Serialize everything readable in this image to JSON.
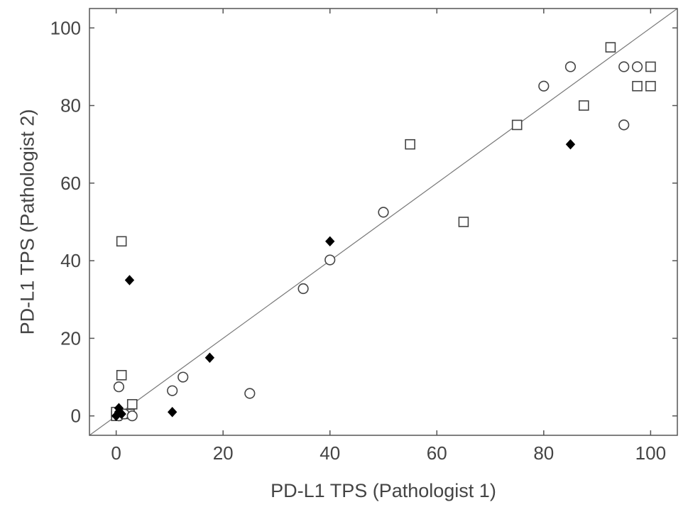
{
  "chart_data": {
    "type": "scatter",
    "title": "",
    "xlabel": "PD-L1 TPS (Pathologist 1)",
    "ylabel": "PD-L1 TPS (Pathologist 2)",
    "xlim": [
      -5,
      105
    ],
    "ylim": [
      -5,
      105
    ],
    "xticks": [
      0,
      20,
      40,
      60,
      80,
      100
    ],
    "yticks": [
      0,
      20,
      40,
      60,
      80,
      100
    ],
    "grid": false,
    "legend": "none",
    "reference_line": {
      "type": "identity",
      "x": [
        -5,
        105
      ],
      "y": [
        -5,
        105
      ],
      "color": "#777777"
    },
    "series": [
      {
        "marker": "square",
        "filled": false,
        "color": "#444444",
        "points": [
          {
            "x": 0,
            "y": 0
          },
          {
            "x": 0,
            "y": 1
          },
          {
            "x": 1,
            "y": 45
          },
          {
            "x": 1,
            "y": 10.5
          },
          {
            "x": 3,
            "y": 3
          },
          {
            "x": 2.5,
            "y": 0.5
          },
          {
            "x": 55,
            "y": 70
          },
          {
            "x": 65,
            "y": 50
          },
          {
            "x": 75,
            "y": 75
          },
          {
            "x": 87.5,
            "y": 80
          },
          {
            "x": 92.5,
            "y": 95
          },
          {
            "x": 97.5,
            "y": 85
          },
          {
            "x": 100,
            "y": 90
          },
          {
            "x": 100,
            "y": 85
          }
        ]
      },
      {
        "marker": "circle",
        "filled": false,
        "color": "#444444",
        "points": [
          {
            "x": 0.5,
            "y": 7.5
          },
          {
            "x": 0.5,
            "y": 0
          },
          {
            "x": 1.5,
            "y": 0.5
          },
          {
            "x": 3,
            "y": 0
          },
          {
            "x": 10.5,
            "y": 6.5
          },
          {
            "x": 12.5,
            "y": 10
          },
          {
            "x": 25,
            "y": 5.8
          },
          {
            "x": 35,
            "y": 32.8
          },
          {
            "x": 40,
            "y": 40.2
          },
          {
            "x": 50,
            "y": 52.5
          },
          {
            "x": 80,
            "y": 85
          },
          {
            "x": 85,
            "y": 90
          },
          {
            "x": 95,
            "y": 90
          },
          {
            "x": 97.5,
            "y": 90
          },
          {
            "x": 95,
            "y": 75
          }
        ]
      },
      {
        "marker": "diamond",
        "filled": true,
        "color": "#000000",
        "points": [
          {
            "x": 0,
            "y": 0
          },
          {
            "x": 0.5,
            "y": 1
          },
          {
            "x": 1,
            "y": 0.5
          },
          {
            "x": 0.5,
            "y": 2
          },
          {
            "x": 2.5,
            "y": 35
          },
          {
            "x": 10.5,
            "y": 1
          },
          {
            "x": 17.5,
            "y": 15
          },
          {
            "x": 40,
            "y": 45
          },
          {
            "x": 85,
            "y": 70
          }
        ]
      }
    ]
  }
}
